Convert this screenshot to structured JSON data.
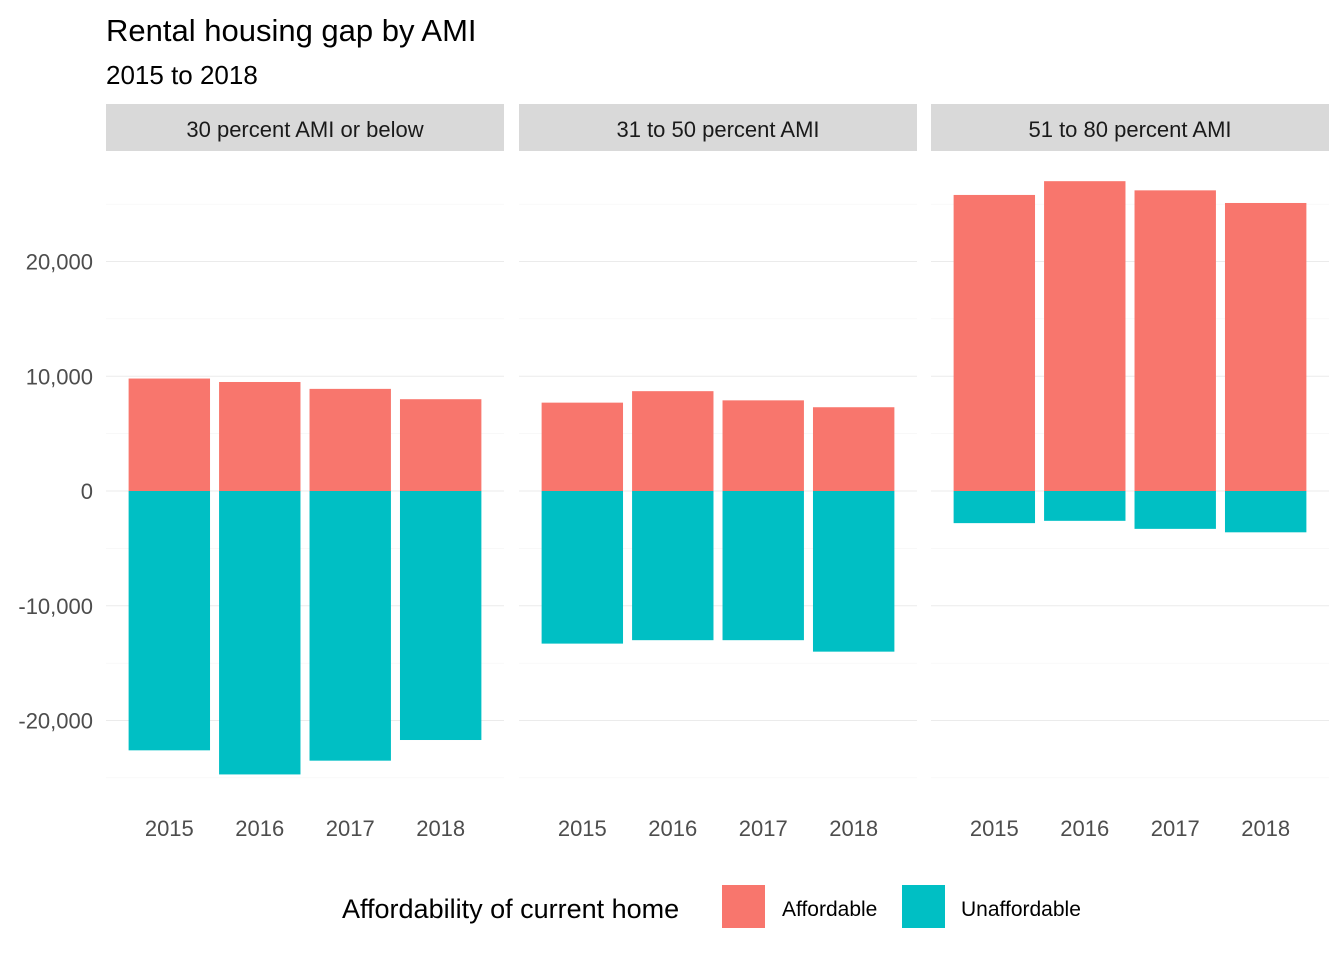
{
  "chart_data": {
    "type": "bar",
    "stacked": true,
    "title": "Rental housing gap by AMI",
    "subtitle": "2015 to 2018",
    "ylim": [
      -26500,
      27500
    ],
    "y_ticks": [
      {
        "value": -20000,
        "label": "-20,000"
      },
      {
        "value": -10000,
        "label": "-10,000"
      },
      {
        "value": 0,
        "label": "0"
      },
      {
        "value": 10000,
        "label": "10,000"
      },
      {
        "value": 20000,
        "label": "20,000"
      }
    ],
    "grid": true,
    "legend": {
      "title": "Affordability of current home",
      "position": "bottom",
      "entries": [
        {
          "name": "Affordable",
          "color": "#F8766D"
        },
        {
          "name": "Unaffordable",
          "color": "#00BFC4"
        }
      ]
    },
    "panels": [
      {
        "label": "30 percent AMI or below",
        "categories": [
          "2015",
          "2016",
          "2017",
          "2018"
        ],
        "series": [
          {
            "name": "Affordable",
            "values": [
              9800,
              9500,
              8900,
              8000
            ]
          },
          {
            "name": "Unaffordable",
            "values": [
              -22600,
              -24700,
              -23500,
              -21700
            ]
          }
        ]
      },
      {
        "label": "31 to 50 percent AMI",
        "categories": [
          "2015",
          "2016",
          "2017",
          "2018"
        ],
        "series": [
          {
            "name": "Affordable",
            "values": [
              7700,
              8700,
              7900,
              7300
            ]
          },
          {
            "name": "Unaffordable",
            "values": [
              -13300,
              -13000,
              -13000,
              -14000
            ]
          }
        ]
      },
      {
        "label": "51 to 80 percent AMI",
        "categories": [
          "2015",
          "2016",
          "2017",
          "2018"
        ],
        "series": [
          {
            "name": "Affordable",
            "values": [
              25800,
              27000,
              26200,
              25100
            ]
          },
          {
            "name": "Unaffordable",
            "values": [
              -2800,
              -2600,
              -3300,
              -3600
            ]
          }
        ]
      }
    ]
  }
}
